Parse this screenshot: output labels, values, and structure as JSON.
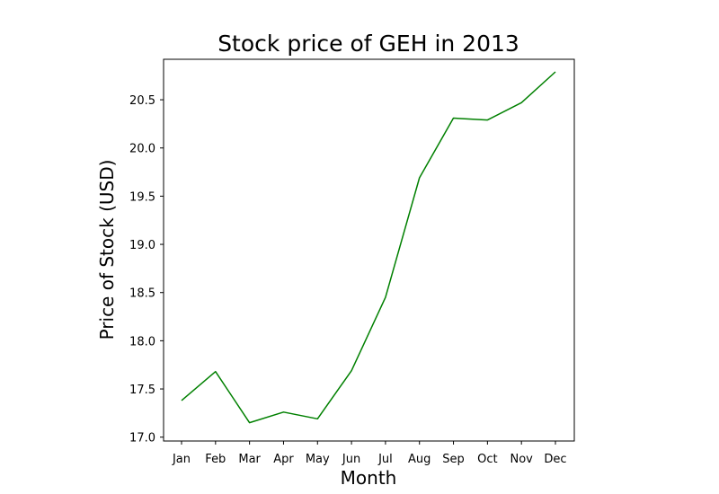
{
  "chart_data": {
    "type": "line",
    "title": "Stock price of GEH in 2013",
    "xlabel": "Month",
    "ylabel": "Price of Stock (USD)",
    "categories": [
      "Jan",
      "Feb",
      "Mar",
      "Apr",
      "May",
      "Jun",
      "Jul",
      "Aug",
      "Sep",
      "Oct",
      "Nov",
      "Dec"
    ],
    "yticks": [
      "17.0",
      "17.5",
      "18.0",
      "18.5",
      "19.0",
      "19.5",
      "20.0",
      "20.5"
    ],
    "ylim": [
      16.96,
      20.92
    ],
    "grid": false,
    "series": [
      {
        "color": "#008000",
        "values": [
          17.38,
          17.68,
          17.15,
          17.26,
          17.19,
          17.69,
          18.45,
          19.69,
          20.31,
          20.29,
          20.47,
          20.79
        ]
      }
    ]
  }
}
